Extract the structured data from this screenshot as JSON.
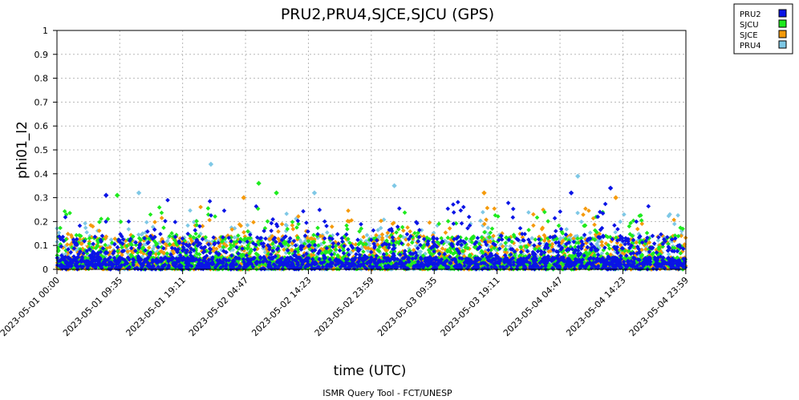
{
  "chart_data": {
    "type": "scatter",
    "title": "PRU2,PRU4,SJCE,SJCU (GPS)",
    "xlabel": "time (UTC)",
    "ylabel": "phi01_l2",
    "ylim": [
      0,
      1
    ],
    "yticks": [
      "0",
      "0.1",
      "0.2",
      "0.3",
      "0.4",
      "0.5",
      "0.6",
      "0.7",
      "0.8",
      "0.9",
      "1"
    ],
    "xlim_hours": [
      0,
      96
    ],
    "xticks": [
      {
        "label": "2023-05-01 00:00",
        "hour": 0
      },
      {
        "label": "2023-05-01 09:35",
        "hour": 9.583
      },
      {
        "label": "2023-05-01 19:11",
        "hour": 19.183
      },
      {
        "label": "2023-05-02 04:47",
        "hour": 28.783
      },
      {
        "label": "2023-05-02 14:23",
        "hour": 38.383
      },
      {
        "label": "2023-05-02 23:59",
        "hour": 47.983
      },
      {
        "label": "2023-05-03 09:35",
        "hour": 57.583
      },
      {
        "label": "2023-05-03 19:11",
        "hour": 67.183
      },
      {
        "label": "2023-05-04 04:47",
        "hour": 76.783
      },
      {
        "label": "2023-05-04 14:23",
        "hour": 86.383
      },
      {
        "label": "2023-05-04 23:59",
        "hour": 95.983
      }
    ],
    "grid": true,
    "legend_position": "top-right",
    "series": [
      {
        "name": "PRU2",
        "color": "#0a14e6",
        "typical_range": [
          0,
          0.3
        ],
        "outliers": [
          {
            "hour": 84.5,
            "value": 0.34
          },
          {
            "hour": 78.5,
            "value": 0.32
          },
          {
            "hour": 7.5,
            "value": 0.31
          }
        ]
      },
      {
        "name": "SJCU",
        "color": "#1eeb1e",
        "typical_range": [
          0,
          0.28
        ],
        "outliers": [
          {
            "hour": 30.8,
            "value": 0.36
          },
          {
            "hour": 33.5,
            "value": 0.32
          },
          {
            "hour": 9.2,
            "value": 0.31
          }
        ]
      },
      {
        "name": "SJCE",
        "color": "#f59a0a",
        "typical_range": [
          0,
          0.28
        ],
        "outliers": [
          {
            "hour": 65.2,
            "value": 0.32
          },
          {
            "hour": 28.5,
            "value": 0.3
          },
          {
            "hour": 85.3,
            "value": 0.3
          }
        ]
      },
      {
        "name": "PRU4",
        "color": "#7ec8e6",
        "typical_range": [
          0,
          0.25
        ],
        "outliers": [
          {
            "hour": 23.5,
            "value": 0.44
          },
          {
            "hour": 79.5,
            "value": 0.39
          },
          {
            "hour": 51.5,
            "value": 0.35
          },
          {
            "hour": 39.3,
            "value": 0.32
          },
          {
            "hour": 12.5,
            "value": 0.32
          }
        ]
      }
    ],
    "footer": "ISMR Query Tool - FCT/UNESP"
  }
}
